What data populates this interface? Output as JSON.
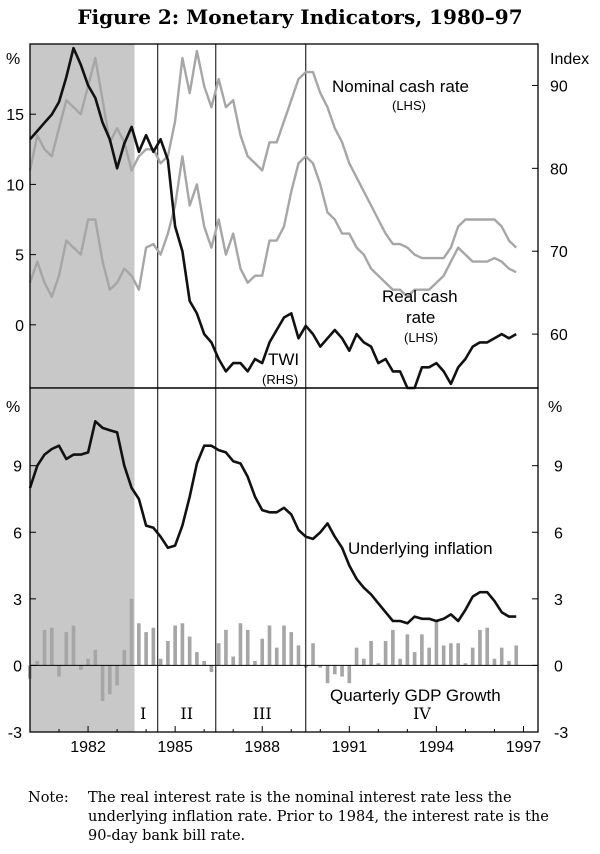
{
  "title": "Figure 2: Monetary Indicators, 1980–97",
  "note": {
    "label": "Note:",
    "text": "The real interest rate is the nominal interest rate less the underlying inflation rate. Prior to 1984, the interest rate is the 90-day bank bill rate."
  },
  "colors": {
    "black_series": "#111111",
    "grey_series": "#a6a6a6",
    "bar": "#a6a6a6",
    "recession": "#c8c8c8"
  },
  "chart_data": [
    {
      "type": "line",
      "panel": "top",
      "left_unit": "%",
      "right_unit": "Index",
      "left_ticks": [
        "15",
        "10",
        "5",
        "0"
      ],
      "right_ticks": [
        "90",
        "80",
        "70",
        "60"
      ],
      "left_ylim": [
        -4.5,
        20
      ],
      "right_ylim": [
        53.5,
        95
      ],
      "shaded_period": {
        "start": 1980.0,
        "end": 1983.6
      },
      "series": [
        {
          "name": "Nominal cash rate",
          "axis": "LHS",
          "label": "Nominal cash rate",
          "axis_label": "(LHS)",
          "x": [
            1980.0,
            1980.25,
            1980.5,
            1980.75,
            1981.0,
            1981.25,
            1981.5,
            1981.75,
            1982.0,
            1982.25,
            1982.5,
            1982.75,
            1983.0,
            1983.25,
            1983.5,
            1983.75,
            1984.0,
            1984.25,
            1984.5,
            1984.75,
            1985.0,
            1985.25,
            1985.5,
            1985.75,
            1986.0,
            1986.25,
            1986.5,
            1986.75,
            1987.0,
            1987.25,
            1987.5,
            1987.75,
            1988.0,
            1988.25,
            1988.5,
            1988.75,
            1989.0,
            1989.25,
            1989.5,
            1989.75,
            1990.0,
            1990.25,
            1990.5,
            1990.75,
            1991.0,
            1991.25,
            1991.5,
            1991.75,
            1992.0,
            1992.25,
            1992.5,
            1992.75,
            1993.0,
            1993.25,
            1993.5,
            1993.75,
            1994.0,
            1994.25,
            1994.5,
            1994.75,
            1995.0,
            1995.25,
            1995.5,
            1995.75,
            1996.0,
            1996.25,
            1996.5,
            1996.75
          ],
          "values": [
            11.0,
            13.5,
            12.5,
            12.0,
            14.0,
            16.0,
            15.5,
            15.0,
            17.0,
            19.0,
            16.0,
            13.0,
            14.0,
            13.0,
            11.0,
            12.0,
            12.5,
            12.5,
            11.5,
            12.0,
            14.5,
            19.0,
            16.5,
            19.5,
            17.0,
            15.5,
            17.5,
            15.5,
            16.0,
            13.5,
            12.0,
            11.5,
            11.0,
            13.0,
            13.0,
            14.5,
            16.0,
            17.5,
            18.0,
            18.0,
            16.5,
            15.5,
            14.0,
            13.0,
            11.5,
            10.5,
            9.5,
            8.5,
            7.5,
            6.5,
            5.75,
            5.75,
            5.5,
            5.0,
            4.75,
            4.75,
            4.75,
            4.75,
            5.5,
            7.0,
            7.5,
            7.5,
            7.5,
            7.5,
            7.5,
            7.0,
            6.0,
            5.5
          ]
        },
        {
          "name": "Real cash rate",
          "axis": "LHS",
          "label": "Real cash",
          "label2": "rate",
          "axis_label": "(LHS)",
          "x": [
            1980.0,
            1980.25,
            1980.5,
            1980.75,
            1981.0,
            1981.25,
            1981.5,
            1981.75,
            1982.0,
            1982.25,
            1982.5,
            1982.75,
            1983.0,
            1983.25,
            1983.5,
            1983.75,
            1984.0,
            1984.25,
            1984.5,
            1984.75,
            1985.0,
            1985.25,
            1985.5,
            1985.75,
            1986.0,
            1986.25,
            1986.5,
            1986.75,
            1987.0,
            1987.25,
            1987.5,
            1987.75,
            1988.0,
            1988.25,
            1988.5,
            1988.75,
            1989.0,
            1989.25,
            1989.5,
            1989.75,
            1990.0,
            1990.25,
            1990.5,
            1990.75,
            1991.0,
            1991.25,
            1991.5,
            1991.75,
            1992.0,
            1992.25,
            1992.5,
            1992.75,
            1993.0,
            1993.25,
            1993.5,
            1993.75,
            1994.0,
            1994.25,
            1994.5,
            1994.75,
            1995.0,
            1995.25,
            1995.5,
            1995.75,
            1996.0,
            1996.25,
            1996.5,
            1996.75
          ],
          "values": [
            3.0,
            4.5,
            3.0,
            2.0,
            3.5,
            6.0,
            5.5,
            5.0,
            7.5,
            7.5,
            4.5,
            2.5,
            3.0,
            4.0,
            3.5,
            2.5,
            5.5,
            5.75,
            5.0,
            6.5,
            8.5,
            12.0,
            8.5,
            10.0,
            7.0,
            5.5,
            7.5,
            5.0,
            6.5,
            4.0,
            3.0,
            3.5,
            3.5,
            6.0,
            6.0,
            7.0,
            9.5,
            11.5,
            12.0,
            11.5,
            10.0,
            8.0,
            7.5,
            6.5,
            6.5,
            5.5,
            5.0,
            4.0,
            3.5,
            3.0,
            2.5,
            2.5,
            2.0,
            2.5,
            2.5,
            2.5,
            3.0,
            3.5,
            4.5,
            5.5,
            5.0,
            4.5,
            4.5,
            4.5,
            4.75,
            4.5,
            4.0,
            3.75
          ]
        },
        {
          "name": "TWI",
          "axis": "RHS",
          "label": "TWI",
          "axis_label": "(RHS)",
          "x": [
            1980.0,
            1980.25,
            1980.5,
            1980.75,
            1981.0,
            1981.25,
            1981.5,
            1981.75,
            1982.0,
            1982.25,
            1982.5,
            1982.75,
            1983.0,
            1983.25,
            1983.5,
            1983.75,
            1984.0,
            1984.25,
            1984.5,
            1984.75,
            1985.0,
            1985.25,
            1985.5,
            1985.75,
            1986.0,
            1986.25,
            1986.5,
            1986.75,
            1987.0,
            1987.25,
            1987.5,
            1987.75,
            1988.0,
            1988.25,
            1988.5,
            1988.75,
            1989.0,
            1989.25,
            1989.5,
            1989.75,
            1990.0,
            1990.25,
            1990.5,
            1990.75,
            1991.0,
            1991.25,
            1991.5,
            1991.75,
            1992.0,
            1992.25,
            1992.5,
            1992.75,
            1993.0,
            1993.25,
            1993.5,
            1993.75,
            1994.0,
            1994.25,
            1994.5,
            1994.75,
            1995.0,
            1995.25,
            1995.5,
            1995.75,
            1996.0,
            1996.25,
            1996.5,
            1996.75
          ],
          "values": [
            83.5,
            84.5,
            85.5,
            86.5,
            88.0,
            91.0,
            94.5,
            92.5,
            90.0,
            88.5,
            85.5,
            83.5,
            80.0,
            83.0,
            85.0,
            82.0,
            84.0,
            82.0,
            83.5,
            81.0,
            73.0,
            70.0,
            64.0,
            62.5,
            60.0,
            59.0,
            57.0,
            55.5,
            56.5,
            56.5,
            55.5,
            57.0,
            56.5,
            59.0,
            60.5,
            62.0,
            62.5,
            59.5,
            61.0,
            60.0,
            58.5,
            59.5,
            60.5,
            59.5,
            58.0,
            60.0,
            59.0,
            58.5,
            56.5,
            57.0,
            55.5,
            55.5,
            53.5,
            53.5,
            56.0,
            56.0,
            56.5,
            55.5,
            54.0,
            56.0,
            57.0,
            58.5,
            59.0,
            59.0,
            59.5,
            60.0,
            59.5,
            60.0
          ]
        }
      ]
    },
    {
      "type": "line+bar",
      "panel": "bottom",
      "left_unit": "%",
      "right_unit": "%",
      "left_ticks": [
        "9",
        "6",
        "3",
        "0",
        "-3"
      ],
      "right_ticks": [
        "9",
        "6",
        "3",
        "0",
        "-3"
      ],
      "ylim": [
        -3,
        12.5
      ],
      "shaded_period": {
        "start": 1980.0,
        "end": 1983.6
      },
      "x_tick_labels": [
        "1982",
        "1985",
        "1988",
        "1991",
        "1994",
        "1997"
      ],
      "x_ticks": [
        1982,
        1985,
        1988,
        1991,
        1994,
        1997
      ],
      "xlim": [
        1980.0,
        1997.5
      ],
      "phase_dividers": [
        1984.4,
        1986.4,
        1989.5
      ],
      "phases": [
        {
          "label": "I",
          "x": 1983.9
        },
        {
          "label": "II",
          "x": 1985.4
        },
        {
          "label": "III",
          "x": 1988.0
        },
        {
          "label": "IV",
          "x": 1993.5
        }
      ],
      "series": [
        {
          "name": "Underlying inflation",
          "type": "line",
          "label": "Underlying inflation",
          "x": [
            1980.0,
            1980.25,
            1980.5,
            1980.75,
            1981.0,
            1981.25,
            1981.5,
            1981.75,
            1982.0,
            1982.25,
            1982.5,
            1982.75,
            1983.0,
            1983.25,
            1983.5,
            1983.75,
            1984.0,
            1984.25,
            1984.5,
            1984.75,
            1985.0,
            1985.25,
            1985.5,
            1985.75,
            1986.0,
            1986.25,
            1986.5,
            1986.75,
            1987.0,
            1987.25,
            1987.5,
            1987.75,
            1988.0,
            1988.25,
            1988.5,
            1988.75,
            1989.0,
            1989.25,
            1989.5,
            1989.75,
            1990.0,
            1990.25,
            1990.5,
            1990.75,
            1991.0,
            1991.25,
            1991.5,
            1991.75,
            1992.0,
            1992.25,
            1992.5,
            1992.75,
            1993.0,
            1993.25,
            1993.5,
            1993.75,
            1994.0,
            1994.25,
            1994.5,
            1994.75,
            1995.0,
            1995.25,
            1995.5,
            1995.75,
            1996.0,
            1996.25,
            1996.5,
            1996.75
          ],
          "values": [
            8.0,
            9.0,
            9.5,
            9.75,
            9.9,
            9.3,
            9.5,
            9.5,
            9.6,
            11.0,
            10.7,
            10.6,
            10.5,
            9.0,
            8.0,
            7.5,
            6.3,
            6.2,
            5.8,
            5.3,
            5.4,
            6.3,
            7.6,
            9.1,
            9.9,
            9.9,
            9.7,
            9.6,
            9.2,
            9.1,
            8.5,
            7.6,
            7.0,
            6.9,
            6.9,
            7.1,
            6.8,
            6.1,
            5.8,
            5.7,
            6.0,
            6.4,
            5.8,
            5.3,
            4.5,
            3.9,
            3.5,
            3.2,
            2.8,
            2.4,
            2.0,
            2.0,
            1.9,
            2.2,
            2.1,
            2.1,
            2.0,
            2.1,
            2.3,
            2.0,
            2.5,
            3.1,
            3.3,
            3.3,
            2.9,
            2.4,
            2.2,
            2.2
          ]
        },
        {
          "name": "Quarterly GDP Growth",
          "type": "bar",
          "label": "Quarterly GDP Growth",
          "x": [
            1980.0,
            1980.25,
            1980.5,
            1980.75,
            1981.0,
            1981.25,
            1981.5,
            1981.75,
            1982.0,
            1982.25,
            1982.5,
            1982.75,
            1983.0,
            1983.25,
            1983.5,
            1983.75,
            1984.0,
            1984.25,
            1984.5,
            1984.75,
            1985.0,
            1985.25,
            1985.5,
            1985.75,
            1986.0,
            1986.25,
            1986.5,
            1986.75,
            1987.0,
            1987.25,
            1987.5,
            1987.75,
            1988.0,
            1988.25,
            1988.5,
            1988.75,
            1989.0,
            1989.25,
            1989.5,
            1989.75,
            1990.0,
            1990.25,
            1990.5,
            1990.75,
            1991.0,
            1991.25,
            1991.5,
            1991.75,
            1992.0,
            1992.25,
            1992.5,
            1992.75,
            1993.0,
            1993.25,
            1993.5,
            1993.75,
            1994.0,
            1994.25,
            1994.5,
            1994.75,
            1995.0,
            1995.25,
            1995.5,
            1995.75,
            1996.0,
            1996.25,
            1996.5,
            1996.75
          ],
          "values": [
            -0.6,
            0.2,
            1.6,
            1.7,
            -0.5,
            1.5,
            1.8,
            -0.2,
            0.3,
            0.7,
            -1.6,
            -1.3,
            -0.9,
            0.7,
            3.0,
            1.9,
            1.5,
            1.7,
            0.3,
            1.1,
            1.8,
            1.9,
            1.3,
            0.6,
            0.2,
            -0.3,
            1.0,
            1.6,
            0.4,
            1.9,
            1.6,
            0.2,
            1.2,
            1.8,
            0.8,
            1.8,
            1.5,
            0.9,
            -0.1,
            1.0,
            -0.1,
            -0.8,
            -0.4,
            -0.5,
            -0.8,
            0.8,
            0.3,
            1.1,
            0.1,
            1.1,
            1.6,
            0.3,
            1.4,
            0.6,
            1.4,
            0.8,
            2.0,
            0.9,
            1.0,
            1.0,
            0.1,
            0.8,
            1.6,
            1.7,
            0.3,
            0.8,
            0.2,
            0.9
          ]
        }
      ]
    }
  ]
}
